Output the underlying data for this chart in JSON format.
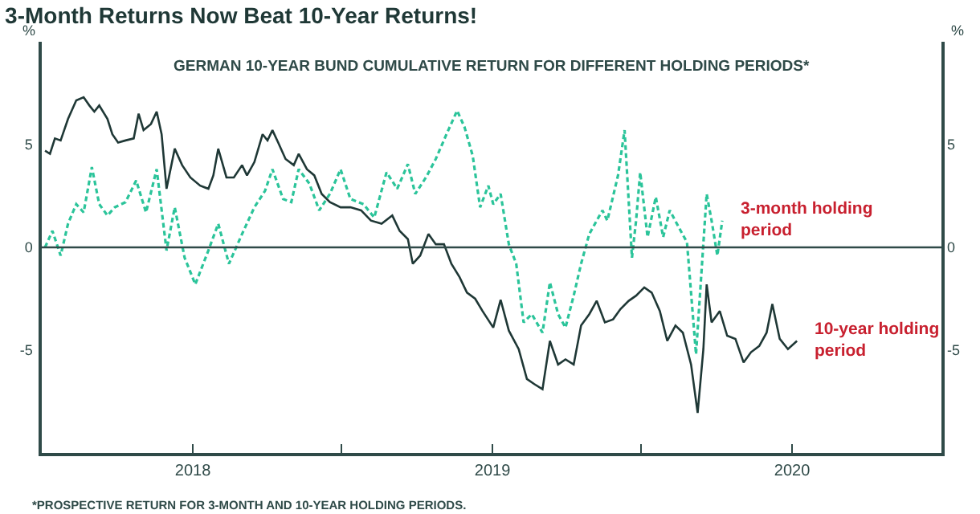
{
  "chart_data": {
    "type": "line",
    "title": "3-Month Returns Now Beat 10-Year Returns!",
    "subtitle": "GERMAN 10-YEAR BUND CUMULATIVE RETURN FOR DIFFERENT HOLDING PERIODS*",
    "ylabel": "%",
    "y2label": "%",
    "annotations": [
      "*PROSPECTIVE RETURN FOR 3-MONTH AND 10-YEAR HOLDING PERIODS."
    ],
    "xlim": [
      "2017-07-01",
      "2020-07-01"
    ],
    "xticks": [
      {
        "value": "2018-01-01",
        "label": "2018"
      },
      {
        "value": "2018-07-01",
        "label": null
      },
      {
        "value": "2019-01-01",
        "label": "2019"
      },
      {
        "value": "2019-07-01",
        "label": null
      },
      {
        "value": "2020-01-01",
        "label": "2020"
      }
    ],
    "ylim": [
      -10,
      10
    ],
    "yticks": [
      -5,
      0,
      5
    ],
    "y2lim": [
      -10,
      10
    ],
    "y2ticks": [
      -5,
      0,
      5
    ],
    "legend": false,
    "ref_lines": [
      {
        "axis": "y",
        "value": 0,
        "color": "#2f4a48"
      }
    ],
    "series": [
      {
        "name": "3-month holding period",
        "color": "#2bc49a",
        "line_style": "dashed",
        "x": [
          "2017-07-05",
          "2017-07-14",
          "2017-07-24",
          "2017-08-02",
          "2017-08-12",
          "2017-08-21",
          "2017-08-31",
          "2017-09-09",
          "2017-09-19",
          "2017-09-28",
          "2017-10-11",
          "2017-10-24",
          "2017-11-05",
          "2017-11-18",
          "2017-11-30",
          "2017-12-10",
          "2017-12-22",
          "2018-01-04",
          "2018-01-20",
          "2018-02-01",
          "2018-02-14",
          "2018-03-02",
          "2018-03-17",
          "2018-03-30",
          "2018-04-08",
          "2018-04-21",
          "2018-05-01",
          "2018-05-10",
          "2018-05-23",
          "2018-06-04",
          "2018-06-17",
          "2018-06-30",
          "2018-07-12",
          "2018-07-28",
          "2018-08-10",
          "2018-08-25",
          "2018-09-07",
          "2018-09-20",
          "2018-09-29",
          "2018-10-12",
          "2018-10-24",
          "2018-11-06",
          "2018-11-19",
          "2018-11-28",
          "2018-12-08",
          "2018-12-17",
          "2018-12-27",
          "2019-01-02",
          "2019-01-11",
          "2019-01-21",
          "2019-01-30",
          "2019-02-08",
          "2019-02-18",
          "2019-03-03",
          "2019-03-12",
          "2019-03-22",
          "2019-03-31",
          "2019-04-10",
          "2019-04-19",
          "2019-04-29",
          "2019-05-08",
          "2019-05-15",
          "2019-05-21",
          "2019-06-03",
          "2019-06-11",
          "2019-06-20",
          "2019-06-25",
          "2019-06-30",
          "2019-07-09",
          "2019-07-19",
          "2019-07-28",
          "2019-08-05",
          "2019-08-15",
          "2019-08-26",
          "2019-09-06",
          "2019-09-19",
          "2019-09-25",
          "2019-10-02",
          "2019-10-08"
        ],
        "values": [
          0,
          0.8,
          -0.4,
          1.15,
          2.1,
          1.7,
          3.9,
          2.1,
          1.55,
          1.95,
          2.2,
          3.25,
          1.7,
          3.8,
          -0.15,
          1.95,
          -0.5,
          -1.8,
          -0.15,
          1.15,
          -0.8,
          0.65,
          1.95,
          2.75,
          3.8,
          2.35,
          2.2,
          3.8,
          3.1,
          1.8,
          2.6,
          3.8,
          2.35,
          2.1,
          1.45,
          3.65,
          2.85,
          4.05,
          2.6,
          3.4,
          4.3,
          5.5,
          6.65,
          5.85,
          4.45,
          1.95,
          3.0,
          2.1,
          2.6,
          0.15,
          -0.8,
          -3.65,
          -3.25,
          -4.15,
          -1.7,
          -3.25,
          -3.9,
          -2.35,
          -0.8,
          0.65,
          1.3,
          1.8,
          1.3,
          3.5,
          5.7,
          -0.5,
          1.3,
          3.65,
          0.5,
          2.45,
          0.5,
          1.8,
          1.05,
          0.25,
          -5.2,
          2.6,
          1.3,
          -0.4,
          1.3
        ]
      },
      {
        "name": "10-year holding period",
        "color": "#1f3836",
        "line_style": "solid",
        "x": [
          "2017-07-05",
          "2017-07-11",
          "2017-07-17",
          "2017-07-24",
          "2017-08-02",
          "2017-08-12",
          "2017-08-21",
          "2017-08-28",
          "2017-09-03",
          "2017-09-09",
          "2017-09-19",
          "2017-09-25",
          "2017-10-02",
          "2017-10-11",
          "2017-10-21",
          "2017-10-27",
          "2017-11-02",
          "2017-11-11",
          "2017-11-18",
          "2017-11-24",
          "2017-11-30",
          "2017-12-10",
          "2017-12-19",
          "2017-12-29",
          "2018-01-10",
          "2018-01-20",
          "2018-01-26",
          "2018-02-01",
          "2018-02-11",
          "2018-02-20",
          "2018-03-02",
          "2018-03-08",
          "2018-03-17",
          "2018-03-27",
          "2018-04-02",
          "2018-04-08",
          "2018-04-15",
          "2018-04-24",
          "2018-05-04",
          "2018-05-10",
          "2018-05-20",
          "2018-05-29",
          "2018-06-07",
          "2018-06-17",
          "2018-06-30",
          "2018-07-12",
          "2018-07-25",
          "2018-08-06",
          "2018-08-19",
          "2018-09-01",
          "2018-09-10",
          "2018-09-20",
          "2018-09-26",
          "2018-10-05",
          "2018-10-15",
          "2018-10-24",
          "2018-11-03",
          "2018-11-12",
          "2018-11-22",
          "2018-12-01",
          "2018-12-11",
          "2018-12-20",
          "2019-01-02",
          "2019-01-11",
          "2019-01-21",
          "2019-02-02",
          "2019-02-12",
          "2019-02-21",
          "2019-03-03",
          "2019-03-12",
          "2019-03-22",
          "2019-03-31",
          "2019-04-10",
          "2019-04-19",
          "2019-04-29",
          "2019-05-08",
          "2019-05-18",
          "2019-05-28",
          "2019-06-06",
          "2019-06-16",
          "2019-06-25",
          "2019-07-05",
          "2019-07-14",
          "2019-07-24",
          "2019-08-02",
          "2019-08-12",
          "2019-08-21",
          "2019-08-31",
          "2019-09-08",
          "2019-09-15",
          "2019-09-19",
          "2019-09-25",
          "2019-10-05",
          "2019-10-14",
          "2019-10-24",
          "2019-11-03",
          "2019-11-12",
          "2019-11-22",
          "2019-12-01",
          "2019-12-08",
          "2019-12-17",
          "2019-12-27",
          "2020-01-07"
        ],
        "values": [
          4.7,
          4.55,
          5.3,
          5.2,
          6.25,
          7.15,
          7.3,
          6.9,
          6.6,
          6.9,
          6.25,
          5.5,
          5.1,
          5.2,
          5.3,
          6.5,
          5.7,
          6.0,
          6.6,
          5.5,
          2.85,
          4.8,
          4.0,
          3.4,
          3.0,
          2.85,
          3.5,
          4.8,
          3.4,
          3.4,
          4.0,
          3.5,
          4.15,
          5.5,
          5.2,
          5.7,
          5.1,
          4.3,
          4.0,
          4.55,
          3.8,
          3.5,
          2.6,
          2.2,
          1.95,
          1.95,
          1.8,
          1.3,
          1.15,
          1.55,
          0.8,
          0.4,
          -0.8,
          -0.4,
          0.65,
          0.15,
          0.15,
          -0.8,
          -1.45,
          -2.2,
          -2.5,
          -3.1,
          -3.9,
          -2.55,
          -4.05,
          -4.95,
          -6.4,
          -6.65,
          -6.9,
          -4.55,
          -5.7,
          -5.45,
          -5.7,
          -3.8,
          -3.25,
          -2.6,
          -3.65,
          -3.5,
          -3.0,
          -2.6,
          -2.35,
          -1.95,
          -2.2,
          -3.1,
          -4.55,
          -3.8,
          -4.15,
          -5.7,
          -8.05,
          -4.95,
          -1.8,
          -3.65,
          -3.1,
          -4.3,
          -4.45,
          -5.6,
          -5.1,
          -4.8,
          -4.15,
          -2.75,
          -4.45,
          -4.95,
          -4.55
        ]
      }
    ]
  }
}
